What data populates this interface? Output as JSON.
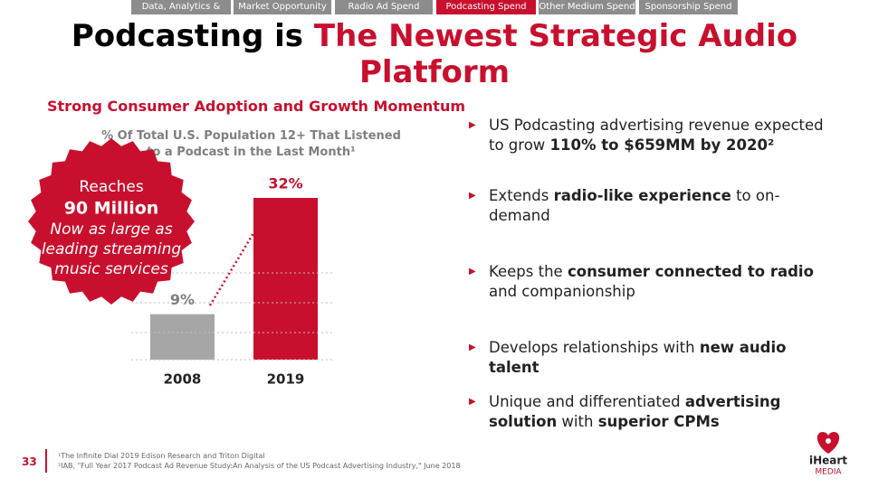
{
  "nav": {
    "tabs": [
      "Data, Analytics & Tech",
      "Market Opportunity",
      "Radio Ad Spend",
      "Podcasting Spend",
      "Other Medium Spend",
      "Sponsorship Spend"
    ],
    "active": 3
  },
  "header": {
    "title_plain": "Podcasting is",
    "title_accent": "The Newest Strategic Audio Platform"
  },
  "section_title": "Strong Consumer Adoption and Growth Momentum",
  "chart_data": {
    "type": "bar",
    "title": "% Of Total U.S. Population 12+ That Listened to a Podcast in the Last Month¹",
    "categories": [
      "2008",
      "2019"
    ],
    "values": [
      9,
      32
    ],
    "value_labels": [
      "9%",
      "32%"
    ],
    "colors": [
      "#a6a6a6",
      "#c8102e"
    ],
    "grid": true
  },
  "badge": {
    "lines": [
      "Reaches",
      "90 Million",
      "Now as large as",
      "leading streaming",
      "music services"
    ]
  },
  "bullets": [
    [
      {
        "text": "US Podcasting advertising revenue expected to grow ",
        "bold": false
      },
      {
        "text": "110% to $659MM by 2020²",
        "bold": true
      }
    ],
    [
      {
        "text": "Extends ",
        "bold": false
      },
      {
        "text": "radio-like experience",
        "bold": true
      },
      {
        "text": " to on-demand",
        "bold": false
      }
    ],
    [
      {
        "text": "Keeps the ",
        "bold": false
      },
      {
        "text": "consumer connected to radio",
        "bold": true
      },
      {
        "text": " and companionship",
        "bold": false
      }
    ],
    [
      {
        "text": "Develops relationships with ",
        "bold": false
      },
      {
        "text": "new audio talent",
        "bold": true
      }
    ],
    [
      {
        "text": "Unique and differentiated ",
        "bold": false
      },
      {
        "text": "advertising solution",
        "bold": true
      },
      {
        "text": " with ",
        "bold": false
      },
      {
        "text": "superior CPMs",
        "bold": true
      }
    ]
  ],
  "footer": {
    "page": "33",
    "notes": [
      "¹The Infinite Dial 2019 Edison Research and Triton Digital",
      "²IAB, \"Full Year 2017 Podcast Ad Revenue Study:An Analysis of the US Podcast Advertising Industry,\" June 2018"
    ],
    "logo": [
      "iHeart",
      "MEDIA"
    ]
  }
}
